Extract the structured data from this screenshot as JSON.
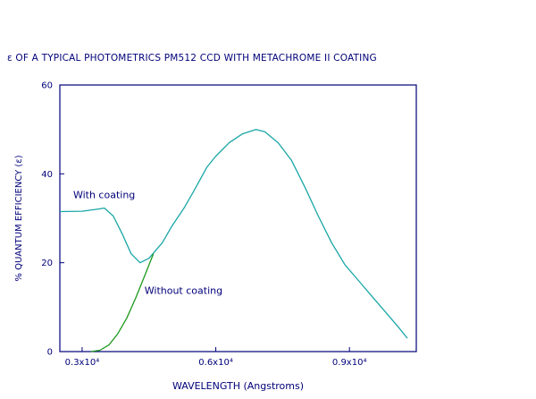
{
  "chart_data": {
    "type": "line",
    "title": "ε OF A TYPICAL PHOTOMETRICS PM512 CCD WITH METACHROME II COATING",
    "xlabel": "WAVELENGTH (Angstroms)",
    "ylabel": "% QUANTUM EFFICIENCY (ε)",
    "xlim": [
      2500,
      10500
    ],
    "ylim": [
      0,
      60
    ],
    "x_ticks": [
      {
        "value": 3000,
        "label": "0.3x10⁴"
      },
      {
        "value": 6000,
        "label": "0.6x10⁴"
      },
      {
        "value": 9000,
        "label": "0.9x10⁴"
      }
    ],
    "y_ticks": [
      {
        "value": 0,
        "label": "0"
      },
      {
        "value": 20,
        "label": "20"
      },
      {
        "value": 40,
        "label": "40"
      },
      {
        "value": 60,
        "label": "60"
      }
    ],
    "series": [
      {
        "name": "With coating",
        "color": "#1aa6a6",
        "x": [
          2500,
          3000,
          3300,
          3500,
          3700,
          3900,
          4100,
          4300,
          4500,
          4800,
          5000,
          5300,
          5500,
          5800,
          6000,
          6300,
          6600,
          6900,
          7100,
          7400,
          7700,
          8000,
          8300,
          8600,
          8900,
          9200,
          9500,
          9800,
          10100,
          10300
        ],
        "y": [
          31.5,
          31.6,
          32.0,
          32.3,
          30.5,
          26.5,
          22.0,
          20.0,
          21.0,
          24.5,
          28.0,
          32.5,
          36.0,
          41.5,
          44.0,
          47.0,
          49.0,
          50.0,
          49.5,
          47.0,
          43.0,
          37.0,
          30.5,
          24.5,
          19.5,
          16.0,
          12.5,
          9.0,
          5.5,
          3.0
        ]
      },
      {
        "name": "Without coating",
        "color": "#1d9a1d",
        "x": [
          3200,
          3400,
          3600,
          3800,
          4000,
          4200,
          4400,
          4600
        ],
        "y": [
          0.0,
          0.3,
          1.5,
          4.0,
          7.5,
          12.0,
          17.0,
          22.0
        ]
      }
    ],
    "annotations": [
      {
        "text": "With coating",
        "x": 2800,
        "y": 34.5
      },
      {
        "text": "Without coating",
        "x": 4400,
        "y": 13.0
      }
    ]
  }
}
